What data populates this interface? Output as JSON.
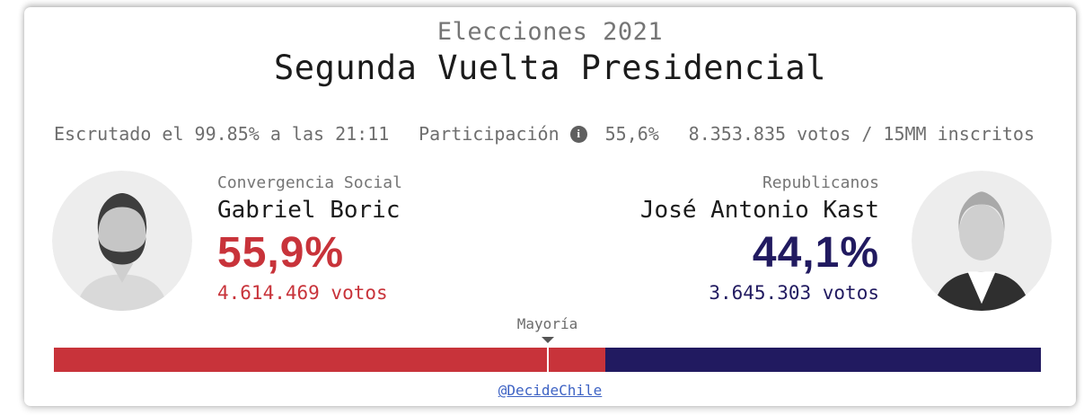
{
  "header": {
    "supertitle": "Elecciones 2021",
    "title": "Segunda Vuelta Presidencial"
  },
  "stats": {
    "escrutado": "Escrutado el 99.85% a las 21:11",
    "participacion_label": "Participación",
    "participacion_value": "55,6%",
    "info_icon_glyph": "i",
    "inscritos": "8.353.835 votos / 15MM inscritos"
  },
  "candidates": {
    "left": {
      "party": "Convergencia Social",
      "name": "Gabriel Boric",
      "percent": "55,9%",
      "votes": "4.614.469 votos",
      "color": "#c8333a",
      "share": 55.9
    },
    "right": {
      "party": "Republicanos",
      "name": "José Antonio Kast",
      "percent": "44,1%",
      "votes": "3.645.303 votos",
      "color": "#211a60",
      "share": 44.1
    }
  },
  "bar": {
    "majority_label": "Mayoría",
    "majority_position_pct": 50
  },
  "footer": {
    "credit_link": "@DecideChile"
  },
  "colors": {
    "red": "#c8333a",
    "navy": "#211a60",
    "gray_text": "#6e6e6e",
    "link_blue": "#3e63c4"
  },
  "chart_data": {
    "type": "bar",
    "title": "Segunda Vuelta Presidencial",
    "subtitle": "Elecciones 2021",
    "layout": "single horizontal stacked bar (share of vote)",
    "categories": [
      "Gabriel Boric — Convergencia Social",
      "José Antonio Kast — Republicanos"
    ],
    "values": [
      55.9,
      44.1
    ],
    "value_unit": "percent of votes",
    "votes": [
      4614469,
      3645303
    ],
    "colors": [
      "#c8333a",
      "#211a60"
    ],
    "xlim": [
      0,
      100
    ],
    "annotations": [
      "Mayoría marker at 50%",
      "Escrutado el 99.85% a las 21:11",
      "Participación 55,6%",
      "8.353.835 votos / 15MM inscritos"
    ],
    "legend_position": "above bar, left and right aligned with candidate photos"
  }
}
